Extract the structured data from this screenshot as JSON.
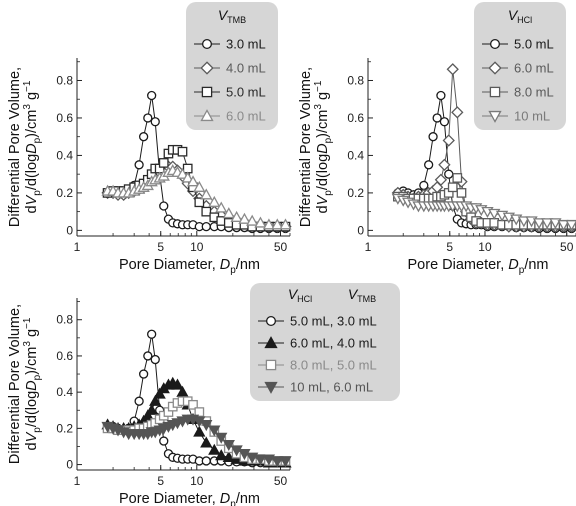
{
  "chart_data": [
    {
      "type": "line",
      "xscale": "log",
      "xlim": [
        1,
        60
      ],
      "ylim": [
        -0.03,
        0.92
      ],
      "xticks": [
        {
          "v": 1,
          "label": "1"
        },
        {
          "v": 5,
          "label": "5"
        },
        {
          "v": 10,
          "label": "10"
        },
        {
          "v": 50,
          "label": "50"
        }
      ],
      "yticks": [
        {
          "v": 0,
          "label": "0"
        },
        {
          "v": 0.2,
          "label": "0.2"
        },
        {
          "v": 0.4,
          "label": "0.4"
        },
        {
          "v": 0.6,
          "label": "0.6"
        },
        {
          "v": 0.8,
          "label": "0.8"
        }
      ],
      "xlabel": {
        "pre": "Pore Diameter, ",
        "var": "D",
        "sub": "p",
        "post": "/nm"
      },
      "ylabel": {
        "line1": "Differential Pore Volume,",
        "line2": {
          "a": "dV",
          "b": "p",
          "c": "/d(log",
          "d": "D",
          "e": "p",
          "f": ")/cm",
          "g": "3",
          "h": " g",
          "i": "−1"
        }
      },
      "legend": {
        "placement": "top-right",
        "headers": [
          {
            "main": "V",
            "sub": "TMB"
          }
        ]
      },
      "series": [
        {
          "name": "3.0 mL",
          "marker": "circle",
          "color": "#1a1a1a",
          "filled": false,
          "x": [
            1.8,
            2.0,
            2.2,
            2.45,
            2.7,
            3.0,
            3.3,
            3.6,
            3.9,
            4.2,
            4.5,
            4.9,
            5.3,
            5.8,
            6.3,
            6.9,
            7.6,
            8.4,
            9.3,
            10.5,
            12,
            14,
            16,
            18.5,
            21.5,
            25,
            29,
            34,
            40,
            47,
            55
          ],
          "y": [
            0.2,
            0.21,
            0.2,
            0.19,
            0.2,
            0.24,
            0.35,
            0.5,
            0.6,
            0.72,
            0.58,
            0.3,
            0.13,
            0.06,
            0.04,
            0.035,
            0.03,
            0.03,
            0.03,
            0.02,
            0.02,
            0.02,
            0.02,
            0.015,
            0.015,
            0.015,
            0.01,
            0.01,
            0.01,
            0.01,
            0.01
          ]
        },
        {
          "name": "4.0 mL",
          "marker": "diamond",
          "color": "#5a5a5a",
          "filled": false,
          "x": [
            1.8,
            2.0,
            2.2,
            2.45,
            2.7,
            3.0,
            3.3,
            3.6,
            3.9,
            4.2,
            4.5,
            4.9,
            5.3,
            5.8,
            6.3,
            6.9,
            7.6,
            8.4,
            9.3,
            10.5,
            12,
            14,
            16,
            18.5,
            21.5,
            25,
            29,
            34,
            40,
            47,
            55
          ],
          "y": [
            0.2,
            0.2,
            0.19,
            0.19,
            0.2,
            0.21,
            0.22,
            0.23,
            0.25,
            0.27,
            0.29,
            0.31,
            0.33,
            0.34,
            0.34,
            0.32,
            0.29,
            0.25,
            0.21,
            0.17,
            0.13,
            0.1,
            0.08,
            0.06,
            0.05,
            0.04,
            0.03,
            0.03,
            0.02,
            0.02,
            0.02
          ]
        },
        {
          "name": "5.0 mL",
          "marker": "square",
          "color": "#2a2a2a",
          "filled": false,
          "x": [
            1.8,
            2.0,
            2.2,
            2.45,
            2.7,
            3.0,
            3.3,
            3.6,
            3.9,
            4.2,
            4.5,
            4.9,
            5.3,
            5.8,
            6.3,
            6.9,
            7.6,
            8.4,
            9.3,
            10.5,
            12,
            14,
            16,
            18.5,
            21.5,
            25,
            29,
            34,
            40,
            47,
            55
          ],
          "y": [
            0.2,
            0.21,
            0.21,
            0.21,
            0.22,
            0.23,
            0.24,
            0.25,
            0.27,
            0.3,
            0.33,
            0.33,
            0.36,
            0.41,
            0.43,
            0.43,
            0.42,
            0.33,
            0.23,
            0.15,
            0.1,
            0.07,
            0.05,
            0.04,
            0.03,
            0.03,
            0.02,
            0.02,
            0.02,
            0.02,
            0.02
          ]
        },
        {
          "name": "6.0 mL",
          "marker": "triangle-up",
          "color": "#8a8a8a",
          "filled": false,
          "x": [
            1.8,
            2.0,
            2.2,
            2.45,
            2.7,
            3.0,
            3.3,
            3.6,
            3.9,
            4.2,
            4.5,
            4.9,
            5.3,
            5.8,
            6.3,
            6.9,
            7.6,
            8.4,
            9.3,
            10.5,
            12,
            14,
            16,
            18.5,
            21.5,
            25,
            29,
            34,
            40,
            47,
            55
          ],
          "y": [
            0.21,
            0.21,
            0.2,
            0.2,
            0.2,
            0.21,
            0.22,
            0.23,
            0.24,
            0.26,
            0.27,
            0.28,
            0.29,
            0.31,
            0.32,
            0.31,
            0.3,
            0.28,
            0.26,
            0.23,
            0.19,
            0.15,
            0.12,
            0.09,
            0.07,
            0.06,
            0.05,
            0.04,
            0.03,
            0.03,
            0.03
          ]
        }
      ]
    },
    {
      "type": "line",
      "xscale": "log",
      "xlim": [
        1,
        60
      ],
      "ylim": [
        -0.03,
        0.92
      ],
      "xticks": [
        {
          "v": 1,
          "label": "1"
        },
        {
          "v": 5,
          "label": "5"
        },
        {
          "v": 10,
          "label": "10"
        },
        {
          "v": 50,
          "label": "50"
        }
      ],
      "yticks": [
        {
          "v": 0,
          "label": "0"
        },
        {
          "v": 0.2,
          "label": "0.2"
        },
        {
          "v": 0.4,
          "label": "0.4"
        },
        {
          "v": 0.6,
          "label": "0.6"
        },
        {
          "v": 0.8,
          "label": "0.8"
        }
      ],
      "xlabel": {
        "pre": "Pore Diameter, ",
        "var": "D",
        "sub": "p",
        "post": "/nm"
      },
      "ylabel": {
        "line1": "Differential Pore Volume,",
        "line2": {
          "a": "dV",
          "b": "p",
          "c": "/d(log",
          "d": "D",
          "e": "p",
          "f": ")/cm",
          "g": "3",
          "h": " g",
          "i": "−1"
        }
      },
      "legend": {
        "placement": "top-right",
        "headers": [
          {
            "main": "V",
            "sub": "HCl"
          }
        ]
      },
      "series": [
        {
          "name": "5.0 mL",
          "marker": "circle",
          "color": "#1a1a1a",
          "filled": false,
          "x": [
            1.8,
            2.0,
            2.2,
            2.45,
            2.7,
            3.0,
            3.3,
            3.6,
            3.9,
            4.2,
            4.5,
            4.9,
            5.3,
            5.8,
            6.3,
            6.9,
            7.6,
            8.4,
            9.3,
            10.5,
            12,
            14,
            16,
            18.5,
            21.5,
            25,
            29,
            34,
            40,
            47,
            55
          ],
          "y": [
            0.2,
            0.21,
            0.2,
            0.19,
            0.2,
            0.24,
            0.35,
            0.5,
            0.6,
            0.72,
            0.58,
            0.3,
            0.13,
            0.06,
            0.04,
            0.035,
            0.03,
            0.03,
            0.03,
            0.02,
            0.02,
            0.02,
            0.02,
            0.015,
            0.015,
            0.015,
            0.01,
            0.01,
            0.01,
            0.01,
            0.01
          ]
        },
        {
          "name": "6.0 mL",
          "marker": "diamond",
          "color": "#5a5a5a",
          "filled": false,
          "x": [
            1.8,
            2.0,
            2.2,
            2.45,
            2.7,
            3.0,
            3.3,
            3.6,
            3.9,
            4.2,
            4.5,
            4.9,
            5.3,
            5.8,
            6.3,
            6.9,
            7.6,
            8.4,
            9.3,
            10.5,
            12,
            14,
            16,
            18.5,
            21.5,
            25,
            29,
            34,
            40,
            47,
            55
          ],
          "y": [
            0.2,
            0.19,
            0.18,
            0.17,
            0.18,
            0.19,
            0.2,
            0.21,
            0.23,
            0.27,
            0.35,
            0.48,
            0.86,
            0.63,
            0.26,
            0.1,
            0.06,
            0.04,
            0.04,
            0.03,
            0.03,
            0.03,
            0.02,
            0.02,
            0.02,
            0.02,
            0.02,
            0.02,
            0.02,
            0.02,
            0.02
          ]
        },
        {
          "name": "8.0 mL",
          "marker": "square",
          "color": "#5a5a5a",
          "filled": false,
          "x": [
            1.8,
            2.0,
            2.2,
            2.45,
            2.7,
            3.0,
            3.3,
            3.6,
            3.9,
            4.2,
            4.5,
            4.9,
            5.3,
            5.8,
            6.3,
            6.9,
            7.6,
            8.4,
            9.3,
            10.5,
            12,
            14,
            16,
            18.5,
            21.5,
            25,
            29,
            34,
            40,
            47,
            55
          ],
          "y": [
            0.18,
            0.18,
            0.17,
            0.17,
            0.17,
            0.17,
            0.17,
            0.17,
            0.18,
            0.18,
            0.19,
            0.2,
            0.23,
            0.28,
            0.2,
            0.1,
            0.07,
            0.05,
            0.04,
            0.04,
            0.04,
            0.03,
            0.03,
            0.03,
            0.03,
            0.03,
            0.03,
            0.03,
            0.03,
            0.03,
            0.03
          ]
        },
        {
          "name": "10 mL",
          "marker": "triangle-down",
          "color": "#7a7a7a",
          "filled": false,
          "x": [
            1.8,
            2.0,
            2.2,
            2.45,
            2.7,
            3.0,
            3.3,
            3.6,
            3.9,
            4.2,
            4.5,
            4.9,
            5.3,
            5.8,
            6.3,
            6.9,
            7.6,
            8.4,
            9.3,
            10.5,
            12,
            14,
            16,
            18.5,
            21.5,
            25,
            29,
            34,
            40,
            47,
            55
          ],
          "y": [
            0.17,
            0.16,
            0.15,
            0.14,
            0.13,
            0.13,
            0.13,
            0.13,
            0.13,
            0.13,
            0.13,
            0.13,
            0.13,
            0.13,
            0.13,
            0.13,
            0.12,
            0.12,
            0.11,
            0.1,
            0.09,
            0.08,
            0.07,
            0.06,
            0.05,
            0.05,
            0.04,
            0.04,
            0.04,
            0.03,
            0.03
          ]
        }
      ]
    },
    {
      "type": "line",
      "xscale": "log",
      "xlim": [
        1,
        60
      ],
      "ylim": [
        -0.03,
        0.92
      ],
      "xticks": [
        {
          "v": 1,
          "label": "1"
        },
        {
          "v": 5,
          "label": "5"
        },
        {
          "v": 10,
          "label": "10"
        },
        {
          "v": 50,
          "label": "50"
        }
      ],
      "yticks": [
        {
          "v": 0,
          "label": "0"
        },
        {
          "v": 0.2,
          "label": "0.2"
        },
        {
          "v": 0.4,
          "label": "0.4"
        },
        {
          "v": 0.6,
          "label": "0.6"
        },
        {
          "v": 0.8,
          "label": "0.8"
        }
      ],
      "xlabel": {
        "pre": "Pore Diameter, ",
        "var": "D",
        "sub": "p",
        "post": "/nm"
      },
      "ylabel": {
        "line1": "Differential Pore Volume,",
        "line2": {
          "a": "dV",
          "b": "p",
          "c": "/d(log",
          "d": "D",
          "e": "p",
          "f": ")/cm",
          "g": "3",
          "h": " g",
          "i": "−1"
        }
      },
      "legend": {
        "placement": "top-right",
        "headers": [
          {
            "main": "V",
            "sub": "HCl"
          },
          {
            "main": "V",
            "sub": "TMB"
          }
        ]
      },
      "series": [
        {
          "name": "5.0 mL, 3.0 mL",
          "marker": "circle",
          "color": "#1a1a1a",
          "filled": false,
          "x": [
            1.8,
            2.0,
            2.2,
            2.45,
            2.7,
            3.0,
            3.3,
            3.6,
            3.9,
            4.2,
            4.5,
            4.9,
            5.3,
            5.8,
            6.3,
            6.9,
            7.6,
            8.4,
            9.3,
            10.5,
            12,
            14,
            16,
            18.5,
            21.5,
            25,
            29,
            34,
            40,
            47,
            55
          ],
          "y": [
            0.2,
            0.21,
            0.2,
            0.19,
            0.2,
            0.24,
            0.35,
            0.5,
            0.6,
            0.72,
            0.58,
            0.3,
            0.13,
            0.06,
            0.04,
            0.035,
            0.03,
            0.03,
            0.03,
            0.02,
            0.02,
            0.02,
            0.02,
            0.015,
            0.015,
            0.015,
            0.01,
            0.01,
            0.01,
            0.01,
            0.01
          ]
        },
        {
          "name": "6.0 mL, 4.0 mL",
          "marker": "triangle-up",
          "color": "#1a1a1a",
          "filled": true,
          "x": [
            1.8,
            2.0,
            2.2,
            2.45,
            2.7,
            3.0,
            3.3,
            3.6,
            3.9,
            4.2,
            4.5,
            4.9,
            5.3,
            5.8,
            6.3,
            6.9,
            7.6,
            8.4,
            9.3,
            10.5,
            12,
            14,
            16,
            18.5,
            21.5,
            25,
            29,
            34,
            40,
            47,
            55
          ],
          "y": [
            0.22,
            0.21,
            0.2,
            0.2,
            0.2,
            0.21,
            0.22,
            0.24,
            0.27,
            0.3,
            0.35,
            0.39,
            0.42,
            0.44,
            0.45,
            0.44,
            0.4,
            0.33,
            0.25,
            0.18,
            0.12,
            0.08,
            0.05,
            0.04,
            0.03,
            0.02,
            0.02,
            0.02,
            0.01,
            0.01,
            0.01
          ]
        },
        {
          "name": "8.0 mL, 5.0 mL",
          "marker": "square",
          "color": "#8a8a8a",
          "filled": false,
          "x": [
            1.8,
            2.0,
            2.2,
            2.45,
            2.7,
            3.0,
            3.3,
            3.6,
            3.9,
            4.2,
            4.5,
            4.9,
            5.3,
            5.8,
            6.3,
            6.9,
            7.6,
            8.4,
            9.3,
            10.5,
            12,
            14,
            16,
            18.5,
            21.5,
            25,
            29,
            34,
            40,
            47,
            55
          ],
          "y": [
            0.2,
            0.2,
            0.19,
            0.19,
            0.19,
            0.19,
            0.2,
            0.2,
            0.21,
            0.22,
            0.23,
            0.25,
            0.27,
            0.29,
            0.32,
            0.34,
            0.35,
            0.35,
            0.33,
            0.29,
            0.24,
            0.18,
            0.13,
            0.09,
            0.06,
            0.04,
            0.03,
            0.03,
            0.02,
            0.02,
            0.02
          ]
        },
        {
          "name": "10 mL, 6.0 mL",
          "marker": "triangle-down",
          "color": "#555555",
          "filled": true,
          "x": [
            1.8,
            2.0,
            2.2,
            2.45,
            2.7,
            3.0,
            3.3,
            3.6,
            3.9,
            4.2,
            4.5,
            4.9,
            5.3,
            5.8,
            6.3,
            6.9,
            7.6,
            8.4,
            9.3,
            10.5,
            12,
            14,
            16,
            18.5,
            21.5,
            25,
            29,
            34,
            40,
            47,
            55
          ],
          "y": [
            0.21,
            0.2,
            0.19,
            0.18,
            0.17,
            0.17,
            0.17,
            0.17,
            0.17,
            0.18,
            0.18,
            0.19,
            0.2,
            0.21,
            0.22,
            0.23,
            0.24,
            0.25,
            0.25,
            0.24,
            0.22,
            0.19,
            0.15,
            0.11,
            0.08,
            0.06,
            0.04,
            0.03,
            0.03,
            0.02,
            0.02
          ]
        }
      ]
    }
  ]
}
